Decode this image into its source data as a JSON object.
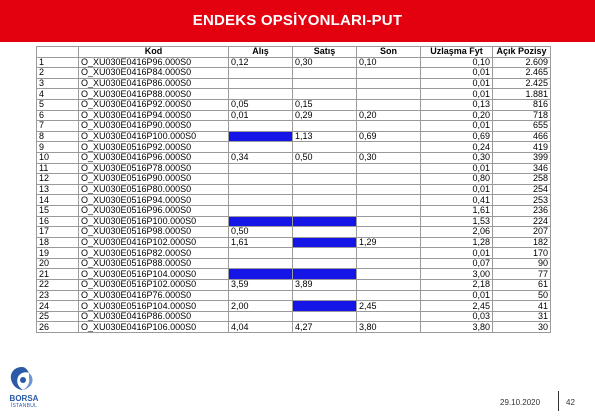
{
  "title": "ENDEKS OPSİYONLARI-PUT",
  "table": {
    "headers": [
      "",
      "Kod",
      "Alış",
      "Satış",
      "Son",
      "Uzlaşma Fyt",
      "Açık Pozisy"
    ],
    "rows": [
      [
        "1",
        "O_XU030E0416P96.000S0",
        "0,12",
        "0,30",
        "0,10",
        "0,10",
        "2.609"
      ],
      [
        "2",
        "O_XU030E0416P84.000S0",
        "",
        "",
        "",
        "0,01",
        "2.465"
      ],
      [
        "3",
        "O_XU030E0416P86.000S0",
        "",
        "",
        "",
        "0,01",
        "2.425"
      ],
      [
        "4",
        "O_XU030E0416P88.000S0",
        "",
        "",
        "",
        "0,01",
        "1.881"
      ],
      [
        "5",
        "O_XU030E0416P92.000S0",
        "0,05",
        "0,15",
        "",
        "0,13",
        "816"
      ],
      [
        "6",
        "O_XU030E0416P94.000S0",
        "0,01",
        "0,29",
        "0,20",
        "0,20",
        "718"
      ],
      [
        "7",
        "O_XU030E0416P90.000S0",
        "",
        "",
        "",
        "0,01",
        "655"
      ],
      [
        "8",
        "O_XU030E0416P100.000S0",
        "",
        "1,13",
        "0,69",
        "0,69",
        "466"
      ],
      [
        "9",
        "O_XU030E0516P92.000S0",
        "",
        "",
        "",
        "0,24",
        "419"
      ],
      [
        "10",
        "O_XU030E0416P96.000S0",
        "0,34",
        "0,50",
        "0,30",
        "0,30",
        "399"
      ],
      [
        "11",
        "O_XU030E0516P78.000S0",
        "",
        "",
        "",
        "0,01",
        "346"
      ],
      [
        "12",
        "O_XU030E0516P90.000S0",
        "",
        "",
        "",
        "0,80",
        "258"
      ],
      [
        "13",
        "O_XU030E0516P80.000S0",
        "",
        "",
        "",
        "0,01",
        "254"
      ],
      [
        "14",
        "O_XU030E0516P94.000S0",
        "",
        "",
        "",
        "0,41",
        "253"
      ],
      [
        "15",
        "O_XU030E0516P96.000S0",
        "",
        "",
        "",
        "1,61",
        "236"
      ],
      [
        "16",
        "O_XU030E0516P100.000S0",
        "",
        "",
        "",
        "1,53",
        "224"
      ],
      [
        "17",
        "O_XU030E0516P98.000S0",
        "0,50",
        "",
        "",
        "2,06",
        "207"
      ],
      [
        "18",
        "O_XU030E0416P102.000S0",
        "1,61",
        "",
        "1,29",
        "1,28",
        "182"
      ],
      [
        "19",
        "O_XU030E0516P82.000S0",
        "",
        "",
        "",
        "0,01",
        "170"
      ],
      [
        "20",
        "O_XU030E0516P88.000S0",
        "",
        "",
        "",
        "0,07",
        "90"
      ],
      [
        "21",
        "O_XU030E0516P104.000S0",
        "",
        "",
        "",
        "3,00",
        "77"
      ],
      [
        "22",
        "O_XU030E0516P102.000S0",
        "3,59",
        "3,89",
        "",
        "2,18",
        "61"
      ],
      [
        "23",
        "O_XU030E0416P76.000S0",
        "",
        "",
        "",
        "0,01",
        "50"
      ],
      [
        "24",
        "O_XU030E0516P104.000S0",
        "2,00",
        "",
        "2,45",
        "2,45",
        "41"
      ],
      [
        "25",
        "O_XU030E0416P86.000S0",
        "",
        "",
        "",
        "0,03",
        "31"
      ],
      [
        "26",
        "O_XU030E0416P106.000S0",
        "4,04",
        "4,27",
        "3,80",
        "3,80",
        "30"
      ]
    ],
    "highlights": [
      [
        8,
        2
      ],
      [
        16,
        2
      ],
      [
        16,
        3
      ],
      [
        18,
        3
      ],
      [
        21,
        2
      ],
      [
        21,
        3
      ],
      [
        24,
        3
      ]
    ],
    "highlight_color": "#1515e8"
  },
  "logo": {
    "line1": "BORSA",
    "line2": "İSTANBUL",
    "icon": "borsa-istanbul-logo-icon"
  },
  "footer": {
    "date": "29.10.2020",
    "page": "42"
  },
  "colors": {
    "banner": "#e3000f",
    "logo": "#2a5aa8"
  }
}
